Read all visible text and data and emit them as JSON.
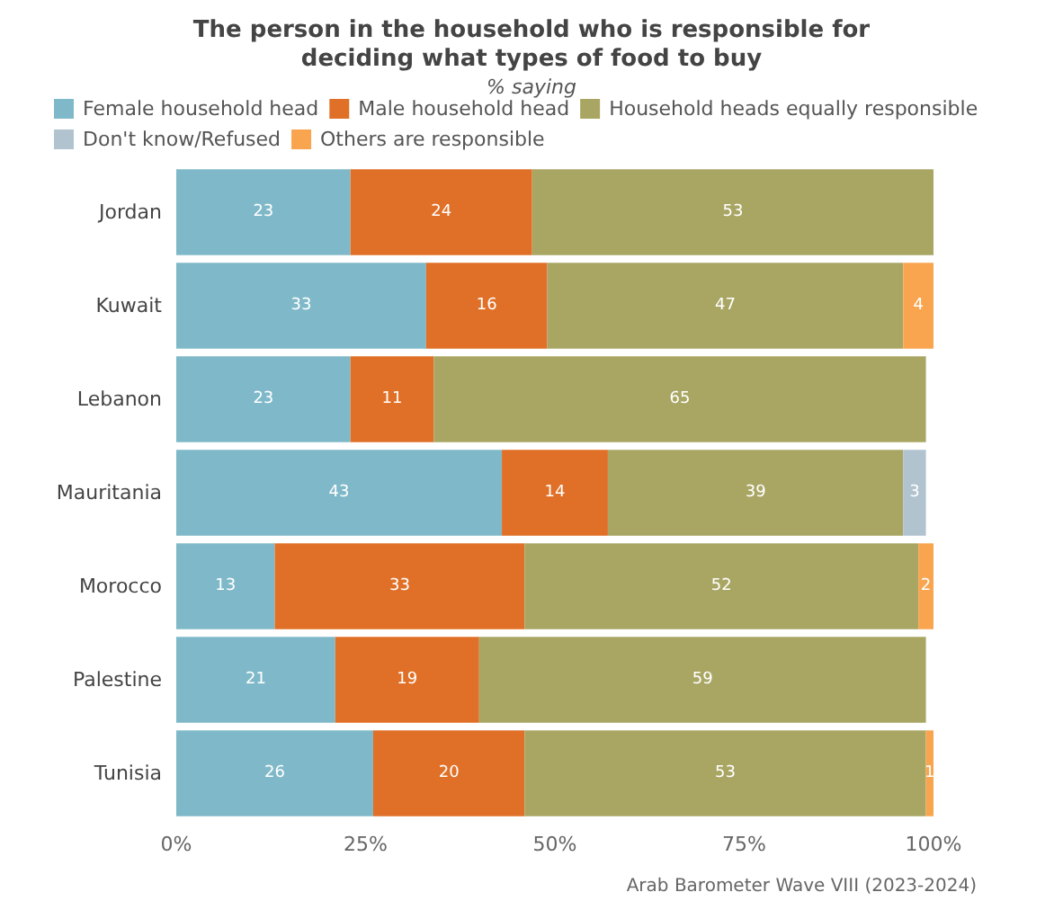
{
  "chart_data": {
    "type": "bar",
    "orientation": "horizontal",
    "stacked": true,
    "title": "The person in the household who is responsible for\ndeciding what types of food to buy",
    "subtitle": "% saying",
    "categories": [
      "Jordan",
      "Kuwait",
      "Lebanon",
      "Mauritania",
      "Morocco",
      "Palestine",
      "Tunisia"
    ],
    "series": [
      {
        "name": "Female household head",
        "color": "#7fb9c9",
        "values": [
          23,
          33,
          23,
          43,
          13,
          21,
          26
        ],
        "value_labels": [
          "23",
          "33",
          "23",
          "43",
          "13",
          "21",
          "26"
        ]
      },
      {
        "name": "Male household head",
        "color": "#e07027",
        "values": [
          24,
          16,
          11,
          14,
          33,
          19,
          20
        ],
        "value_labels": [
          "24",
          "16",
          "11",
          "14",
          "33",
          "19",
          "20"
        ]
      },
      {
        "name": "Household heads equally responsible",
        "color": "#a9a664",
        "values": [
          53,
          47,
          65,
          39,
          52,
          59,
          53
        ],
        "value_labels": [
          "53",
          "47",
          "65",
          "39",
          "52",
          "59",
          "53"
        ]
      },
      {
        "name": "Don't know/Refused",
        "color": "#b1c3cf",
        "values": [
          null,
          null,
          null,
          3,
          null,
          null,
          null
        ],
        "value_labels": [
          null,
          null,
          null,
          "3",
          null,
          null,
          null
        ]
      },
      {
        "name": "Others are responsible",
        "color": "#f9a54f",
        "values": [
          null,
          4,
          null,
          null,
          2,
          null,
          1
        ],
        "value_labels": [
          null,
          "4",
          null,
          null,
          "2",
          null,
          "1"
        ]
      }
    ],
    "xlim": [
      0,
      100
    ],
    "xticks": [
      {
        "value": 0,
        "label": "0%"
      },
      {
        "value": 25,
        "label": "25%"
      },
      {
        "value": 50,
        "label": "50%"
      },
      {
        "value": 75,
        "label": "75%"
      },
      {
        "value": 100,
        "label": "100%"
      }
    ],
    "grid": false,
    "legend": "top",
    "annotations": [
      "Arab Barometer Wave VIII (2023-2024)"
    ]
  }
}
